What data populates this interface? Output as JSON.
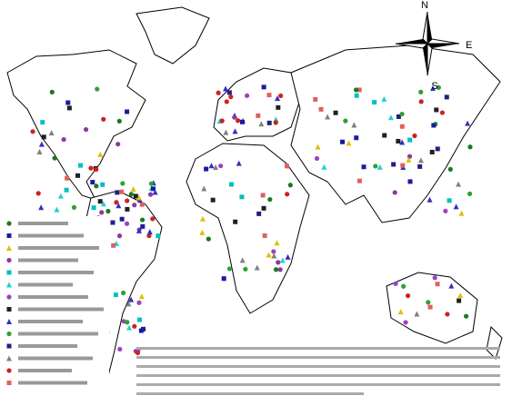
{
  "compass": {
    "north": "N",
    "east": "E",
    "south": "S"
  }
}
